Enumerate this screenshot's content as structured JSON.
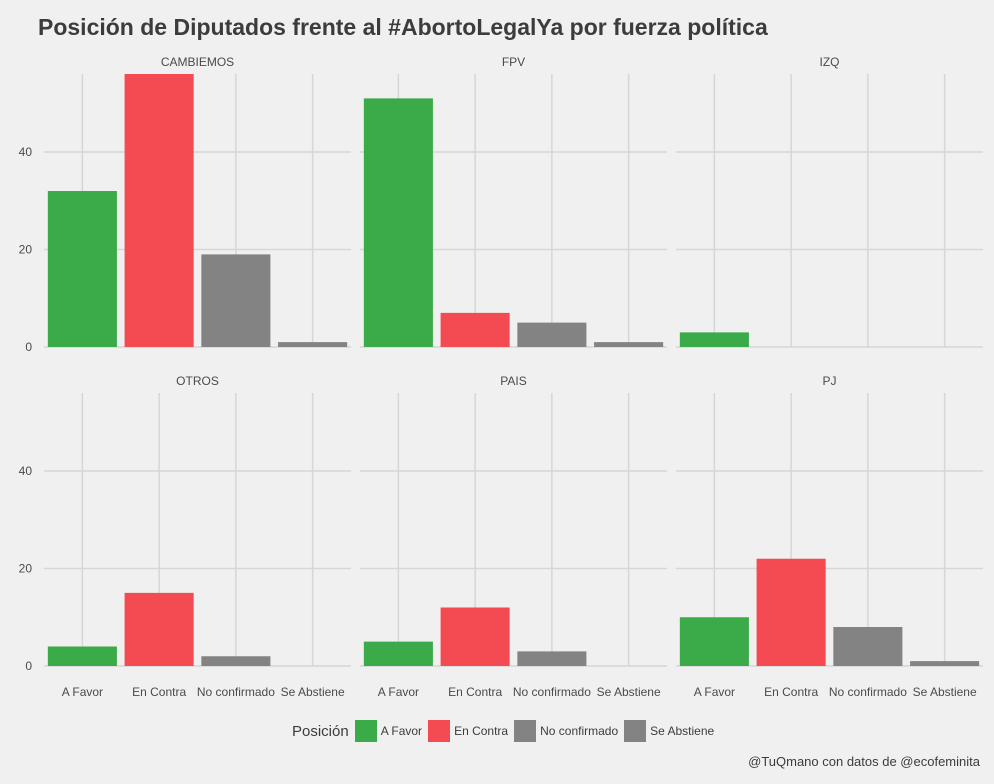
{
  "title": "Posición de Diputados frente al #AbortoLegalYa por fuerza política",
  "caption": "@TuQmano con datos de @ecofeminita",
  "chart_data": {
    "type": "bar",
    "categories": [
      "A Favor",
      "En Contra",
      "No confirmado",
      "Se Abstiene"
    ],
    "colors": {
      "A Favor": "#3aab48",
      "En Contra": "#f44a51",
      "No confirmado": "#838383",
      "Se Abstiene": "#838383"
    },
    "ylim": [
      0,
      56
    ],
    "yticks": [
      0,
      20,
      40
    ],
    "grid": true,
    "legend": {
      "title": "Posición",
      "position": "bottom",
      "entries": [
        "A Favor",
        "En Contra",
        "No confirmado",
        "Se Abstiene"
      ]
    },
    "facets": [
      {
        "name": "CAMBIEMOS",
        "values": [
          32,
          56,
          19,
          1
        ]
      },
      {
        "name": "FPV",
        "values": [
          51,
          7,
          5,
          1
        ]
      },
      {
        "name": "IZQ",
        "values": [
          3,
          0,
          0,
          0
        ]
      },
      {
        "name": "OTROS",
        "values": [
          4,
          15,
          2,
          0
        ]
      },
      {
        "name": "PAIS",
        "values": [
          5,
          12,
          3,
          0
        ]
      },
      {
        "name": "PJ",
        "values": [
          10,
          22,
          8,
          1
        ]
      }
    ]
  }
}
